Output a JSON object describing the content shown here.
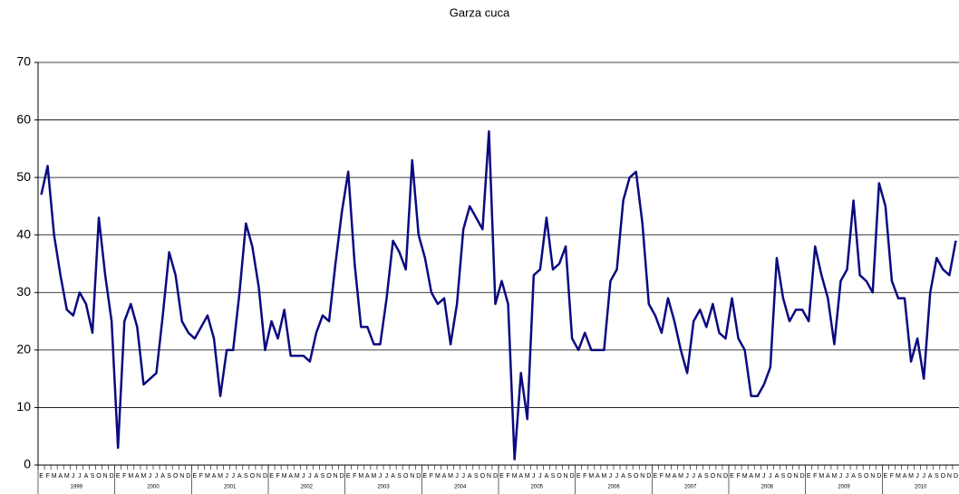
{
  "chart_data": {
    "type": "line",
    "title": "Garza cuca",
    "categories": [
      "E",
      "F",
      "M",
      "A",
      "M",
      "J",
      "J",
      "A",
      "S",
      "O",
      "N",
      "D",
      "E",
      "F",
      "M",
      "A",
      "M",
      "J",
      "J",
      "A",
      "S",
      "O",
      "N",
      "D",
      "E",
      "F",
      "M",
      "A",
      "M",
      "J",
      "J",
      "A",
      "S",
      "O",
      "N",
      "D",
      "E",
      "F",
      "M",
      "A",
      "M",
      "J",
      "J",
      "A",
      "S",
      "O",
      "N",
      "D",
      "E",
      "F",
      "M",
      "A",
      "M",
      "J",
      "J",
      "A",
      "S",
      "O",
      "N",
      "D",
      "E",
      "F",
      "M",
      "A",
      "M",
      "J",
      "J",
      "A",
      "S",
      "O",
      "N",
      "D",
      "E",
      "F",
      "M",
      "A",
      "M",
      "J",
      "J",
      "A",
      "S",
      "O",
      "N",
      "D",
      "E",
      "F",
      "M",
      "A",
      "M",
      "J",
      "J",
      "A",
      "S",
      "O",
      "N",
      "D",
      "E",
      "F",
      "M",
      "A",
      "M",
      "J",
      "J",
      "A",
      "S",
      "O",
      "N",
      "D",
      "E",
      "F",
      "M",
      "A",
      "M",
      "J",
      "J",
      "A",
      "S",
      "O",
      "N",
      "D",
      "E",
      "F",
      "M",
      "A",
      "M",
      "J",
      "J",
      "A",
      "S",
      "O",
      "N",
      "D",
      "E",
      "F",
      "M",
      "A",
      "M",
      "J",
      "J",
      "A",
      "S",
      "O",
      "N",
      "D"
    ],
    "groups": [
      "1999",
      "2000",
      "2001",
      "2002",
      "2003",
      "2004",
      "2005",
      "2006",
      "2007",
      "2008",
      "2009",
      "2010"
    ],
    "values": [
      47,
      52,
      40,
      33,
      27,
      26,
      30,
      28,
      23,
      43,
      33,
      25,
      3,
      25,
      28,
      24,
      14,
      15,
      16,
      26,
      37,
      33,
      25,
      23,
      22,
      24,
      26,
      22,
      12,
      20,
      20,
      30,
      42,
      38,
      31,
      20,
      25,
      22,
      27,
      19,
      19,
      19,
      18,
      23,
      26,
      25,
      35,
      44,
      51,
      35,
      24,
      24,
      21,
      21,
      29,
      39,
      37,
      34,
      53,
      40,
      36,
      30,
      28,
      29,
      21,
      28,
      41,
      45,
      43,
      41,
      58,
      28,
      32,
      28,
      1,
      16,
      8,
      33,
      34,
      43,
      34,
      35,
      38,
      22,
      20,
      23,
      20,
      20,
      20,
      32,
      34,
      46,
      50,
      51,
      42,
      28,
      26,
      23,
      29,
      25,
      20,
      16,
      25,
      27,
      24,
      28,
      23,
      22,
      29,
      22,
      20,
      12,
      12,
      14,
      17,
      36,
      29,
      25,
      27,
      27,
      25,
      38,
      33,
      29,
      21,
      32,
      34,
      46,
      33,
      32,
      30,
      49,
      45,
      32,
      29,
      29,
      18,
      22,
      15,
      30,
      36,
      34,
      33,
      39
    ],
    "color": "#0a0a80",
    "ylim": [
      0,
      70
    ],
    "yticks": [
      0,
      10,
      20,
      30,
      40,
      50,
      60,
      70
    ],
    "grid": true
  }
}
